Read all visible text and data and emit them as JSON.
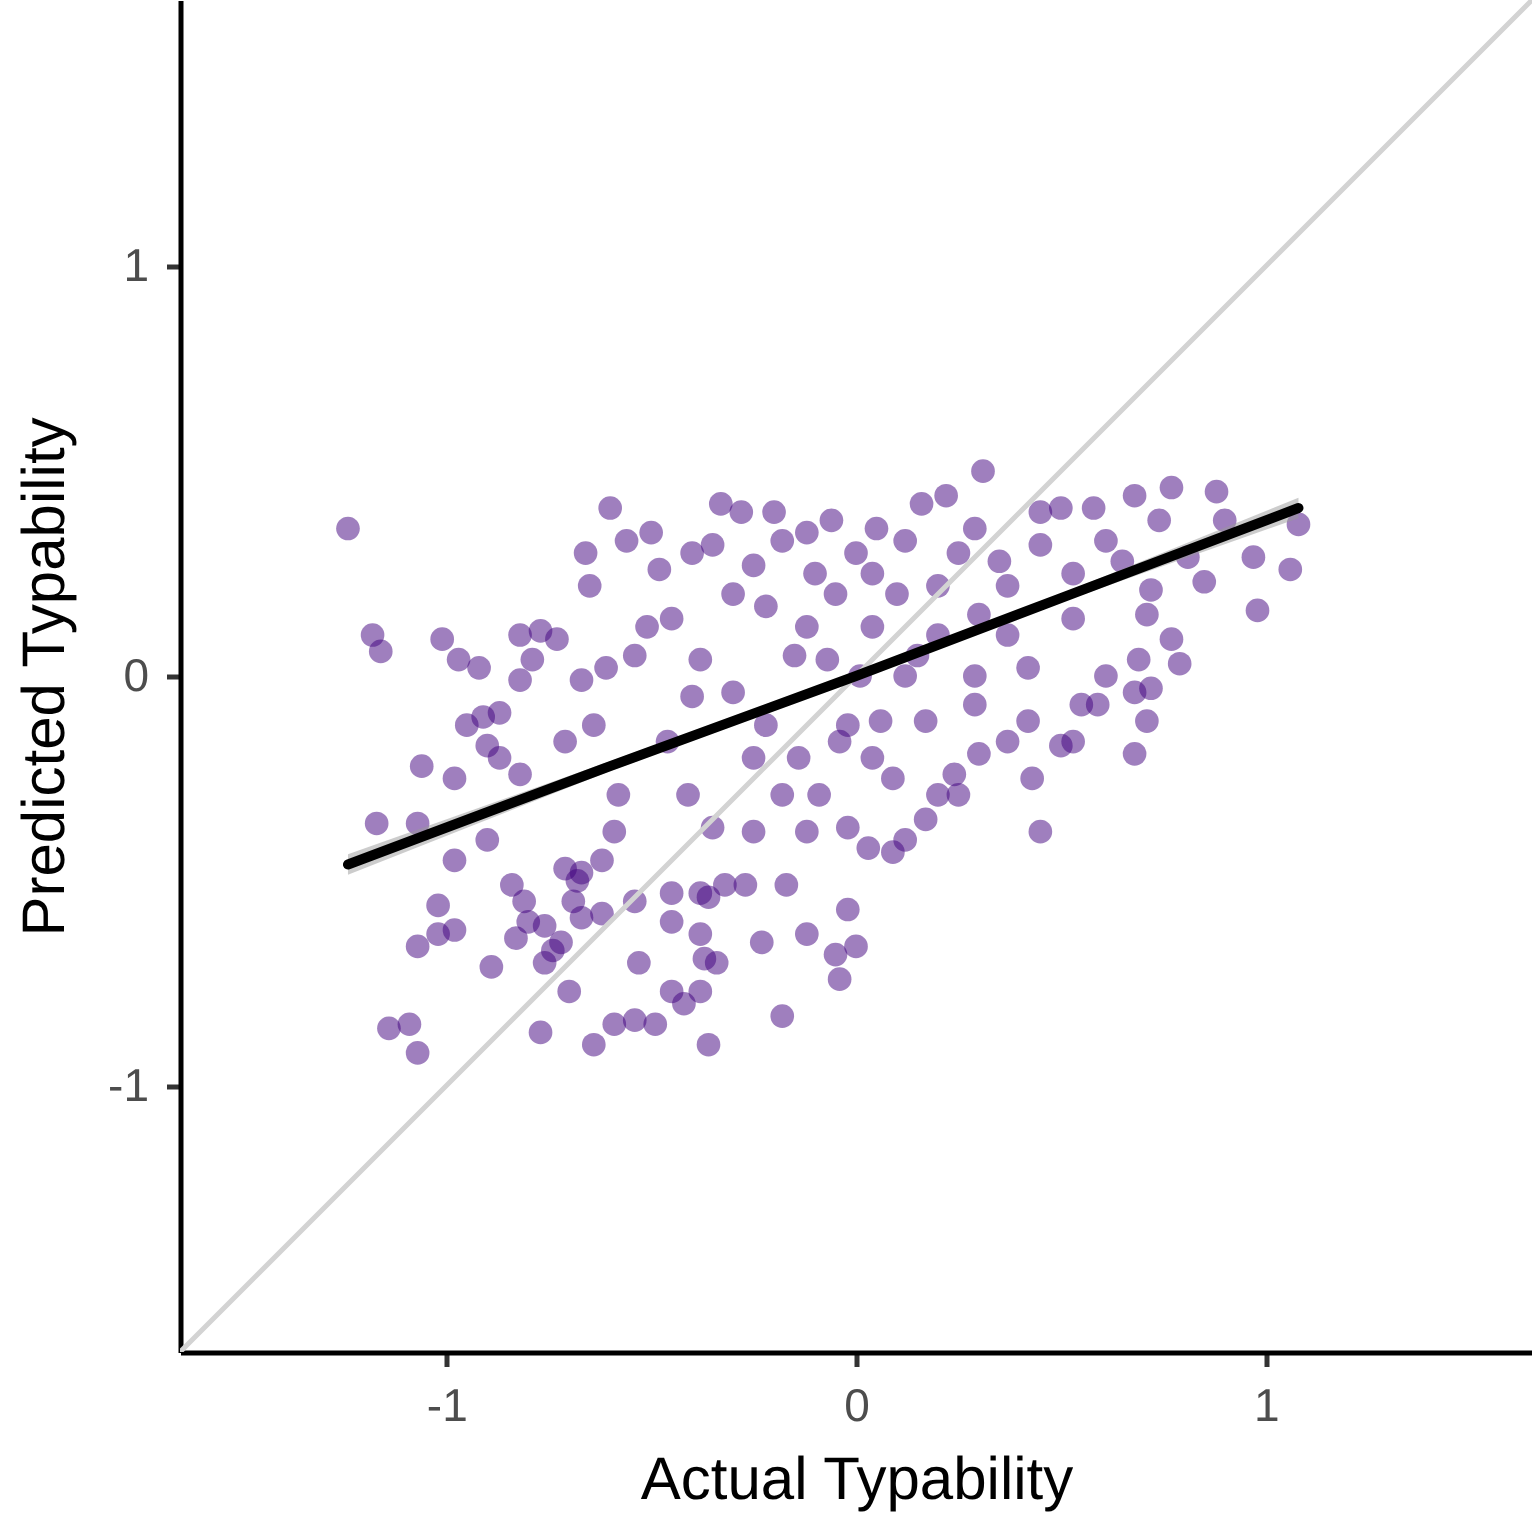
{
  "chart_data": {
    "type": "scatter",
    "xlabel": "Actual Typability",
    "ylabel": "Predicted Typability",
    "xlim": [
      -1.65,
      1.65
    ],
    "ylim": [
      -1.65,
      1.65
    ],
    "xticks": [
      -1,
      0,
      1
    ],
    "yticks": [
      -1,
      0,
      1
    ],
    "series": [
      {
        "color": "#3f007d",
        "marker": "circle",
        "x": [
          -1.24,
          -1.18,
          -1.16,
          -1.01,
          -0.97,
          -0.92,
          -1.06,
          -0.98,
          -1.17,
          -1.07,
          -0.95,
          -0.91,
          -0.87,
          -0.82,
          -0.77,
          -0.73,
          -0.82,
          -0.79,
          -0.6,
          -0.66,
          -0.65,
          -0.56,
          -0.5,
          -0.48,
          -0.33,
          -0.28,
          -1.02,
          -1.07,
          -1.02,
          -0.98,
          -0.89,
          -1.14,
          -1.09,
          -1.07,
          -0.77,
          -0.64,
          -0.59,
          -0.54,
          -0.49,
          -0.36,
          -0.7,
          -0.84,
          -0.81,
          -0.8,
          -0.83,
          -0.74,
          -0.69,
          -0.62,
          -0.53,
          -0.45,
          -0.38,
          -0.18,
          -0.17,
          -0.12,
          -0.05,
          -0.04,
          -0.45,
          -0.38,
          -0.32,
          -0.27,
          -0.9,
          -0.87,
          -0.82,
          -0.71,
          -0.64,
          -0.67,
          -0.61,
          -0.54,
          -0.51,
          -0.45,
          -0.4,
          -0.35,
          -0.25,
          -0.18,
          -0.12,
          -0.38,
          -0.3,
          -0.22,
          -0.14,
          -0.09,
          -0.46,
          -0.41,
          -0.35,
          -0.25,
          -0.58,
          -0.59,
          -0.22,
          -0.12,
          -0.05,
          -0.07,
          -0.02,
          -0.02,
          -0.18,
          -0.12,
          -0.71,
          -0.67,
          -0.98,
          -0.9,
          0.31,
          0.77,
          0.88,
          0.97,
          1.06,
          1.08,
          0.98,
          0.85,
          0.81,
          0.68,
          0.58,
          0.22,
          0.16,
          0.5,
          0.45,
          0.72,
          0.71,
          0.77,
          0.79,
          0.69,
          0.72,
          0.68,
          0.71,
          0.68,
          0.61,
          0.55,
          0.5,
          0.43,
          0.45,
          0.53,
          0.59,
          0.42,
          0.37,
          0.3,
          0.24,
          0.2,
          0.17,
          0.12,
          0.09,
          0.03,
          0.25,
          0.12,
          0.29,
          0.45,
          0.61,
          0.74,
          0.04,
          0.2,
          0.37,
          0.53,
          0.04,
          0.2,
          0.37,
          0.53,
          0.01,
          0.12,
          0.29,
          0.42,
          0.06,
          0.17,
          0.29,
          -0.04,
          0.04,
          0.09,
          -0.62,
          -0.68,
          -0.67,
          -0.76,
          -0.72,
          -0.76,
          -0.45,
          -0.38,
          -0.37,
          -0.34,
          -0.42,
          -0.23,
          -0.02,
          0.0,
          -0.54,
          -0.36,
          -0.2,
          -0.06,
          0.05,
          0.35,
          0.65,
          0.9,
          -0.1,
          0.1,
          0.25,
          -0.15,
          0.15,
          -0.3,
          -0.4,
          -0.25,
          0.0,
          0.3
        ],
        "values": [
          0.36,
          0.1,
          0.06,
          0.09,
          0.04,
          0.02,
          -0.22,
          -0.25,
          -0.36,
          -0.36,
          -0.12,
          -0.1,
          -0.09,
          0.1,
          0.11,
          0.09,
          -0.01,
          0.04,
          0.41,
          0.3,
          0.22,
          0.33,
          0.35,
          0.26,
          0.42,
          0.4,
          -0.56,
          -0.66,
          -0.63,
          -0.62,
          -0.71,
          -0.86,
          -0.85,
          -0.92,
          -0.87,
          -0.9,
          -0.85,
          -0.84,
          -0.85,
          -0.9,
          -0.77,
          -0.51,
          -0.55,
          -0.6,
          -0.64,
          -0.67,
          -0.55,
          -0.58,
          -0.7,
          -0.77,
          -0.77,
          -0.83,
          -0.51,
          -0.63,
          -0.68,
          -0.74,
          -0.53,
          -0.53,
          -0.51,
          -0.51,
          -0.17,
          -0.2,
          -0.24,
          -0.16,
          -0.12,
          -0.01,
          0.02,
          0.05,
          0.12,
          0.14,
          0.3,
          0.32,
          0.27,
          0.33,
          0.35,
          0.04,
          -0.04,
          -0.12,
          -0.2,
          -0.29,
          -0.16,
          -0.29,
          -0.37,
          -0.38,
          -0.29,
          -0.38,
          0.17,
          0.12,
          0.2,
          0.04,
          -0.12,
          -0.37,
          -0.29,
          -0.38,
          -0.47,
          -0.48,
          -0.45,
          -0.4,
          0.5,
          0.46,
          0.45,
          0.29,
          0.26,
          0.37,
          0.16,
          0.23,
          0.29,
          0.44,
          0.41,
          0.44,
          0.42,
          0.41,
          0.4,
          0.21,
          0.15,
          0.09,
          0.03,
          0.04,
          -0.03,
          -0.04,
          -0.11,
          -0.19,
          0.0,
          -0.07,
          -0.17,
          -0.25,
          -0.38,
          -0.16,
          -0.07,
          -0.11,
          -0.16,
          -0.19,
          -0.24,
          -0.29,
          -0.35,
          -0.4,
          -0.43,
          -0.42,
          -0.29,
          0.33,
          0.36,
          0.32,
          0.33,
          0.38,
          0.25,
          0.22,
          0.22,
          0.25,
          0.12,
          0.1,
          0.1,
          0.14,
          0.0,
          0.0,
          0.0,
          0.02,
          -0.11,
          -0.11,
          -0.07,
          -0.16,
          -0.2,
          -0.25,
          -0.45,
          -0.5,
          -0.59,
          -0.61,
          -0.65,
          -0.7,
          -0.6,
          -0.63,
          -0.69,
          -0.7,
          -0.8,
          -0.65,
          -0.57,
          -0.66,
          -0.55,
          -0.54,
          0.4,
          0.38,
          0.36,
          0.28,
          0.28,
          0.38,
          0.25,
          0.2,
          0.3,
          0.05,
          0.05,
          0.2,
          -0.05,
          -0.2,
          0.3,
          0.15
        ]
      },
      {
        "type": "line",
        "color": "#d3d3d3",
        "line_style": "solid",
        "x": [
          -1.65,
          1.65
        ],
        "values": [
          -1.65,
          1.65
        ]
      },
      {
        "type": "line",
        "color": "#000000",
        "line_style": "solid",
        "x": [
          -1.24,
          -0.6,
          0,
          0.5,
          1.08
        ],
        "values": [
          -0.46,
          -0.22,
          0.0,
          0.19,
          0.41
        ],
        "lower": [
          -0.485,
          -0.232,
          -0.008,
          0.18,
          0.385
        ],
        "upper": [
          -0.435,
          -0.208,
          0.008,
          0.2,
          0.435
        ]
      }
    ]
  }
}
